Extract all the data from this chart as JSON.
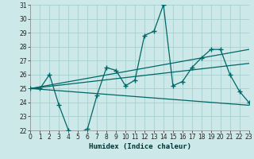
{
  "xlabel": "Humidex (Indice chaleur)",
  "background_color": "#cce8e8",
  "line_color": "#006666",
  "grid_color": "#a8d0d0",
  "xlim": [
    0,
    23
  ],
  "ylim": [
    22,
    31
  ],
  "yticks": [
    22,
    23,
    24,
    25,
    26,
    27,
    28,
    29,
    30,
    31
  ],
  "xticks": [
    0,
    1,
    2,
    3,
    4,
    5,
    6,
    7,
    8,
    9,
    10,
    11,
    12,
    13,
    14,
    15,
    16,
    17,
    18,
    19,
    20,
    21,
    22,
    23
  ],
  "main_line": {
    "x": [
      0,
      1,
      2,
      3,
      4,
      5,
      6,
      7,
      8,
      9,
      10,
      11,
      12,
      13,
      14,
      15,
      16,
      17,
      18,
      19,
      20,
      21,
      22,
      23
    ],
    "y": [
      25.0,
      25.0,
      26.0,
      23.8,
      22.0,
      21.8,
      22.1,
      24.5,
      26.5,
      26.3,
      25.2,
      25.6,
      28.8,
      29.1,
      31.0,
      25.2,
      25.5,
      26.5,
      27.2,
      27.8,
      27.8,
      26.0,
      24.8,
      24.0
    ]
  },
  "ref_lines": [
    {
      "x": [
        0,
        23
      ],
      "y": [
        25.0,
        23.8
      ]
    },
    {
      "x": [
        0,
        23
      ],
      "y": [
        25.0,
        27.8
      ]
    },
    {
      "x": [
        0,
        23
      ],
      "y": [
        25.0,
        26.8
      ]
    }
  ]
}
